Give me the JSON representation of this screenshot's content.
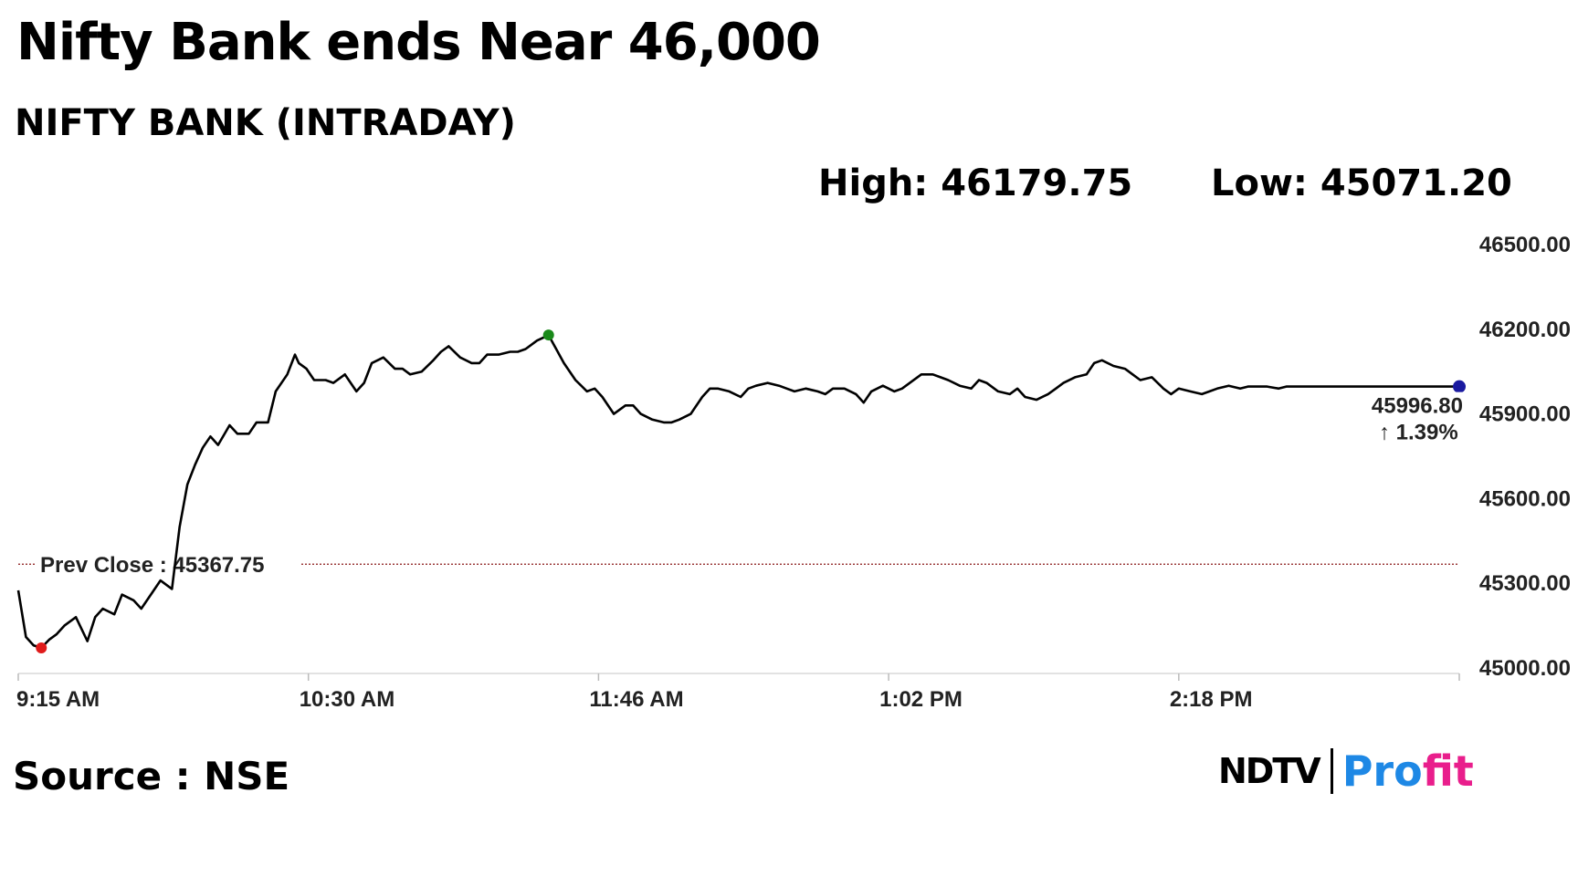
{
  "header": {
    "title": "Nifty Bank ends Near 46,000",
    "subtitle": "NIFTY BANK (INTRADAY)",
    "high": "High: 46179.75",
    "low": "Low: 45071.20"
  },
  "footer": {
    "source": "Source : NSE",
    "logo_left": "NDTV",
    "logo_right_a": "Pro",
    "logo_right_b": "fit"
  },
  "colors": {
    "line": "#000000",
    "prev_close": "#8b1a1a",
    "low_marker": "#e01b1b",
    "high_marker": "#1a8a1a",
    "last_marker": "#1a1aa0",
    "change": "#1a8a1a"
  },
  "chart_data": {
    "type": "line",
    "title": "NIFTY BANK (INTRADAY)",
    "xlabel": "",
    "ylabel": "",
    "x_ticks": [
      "9:15 AM",
      "10:30 AM",
      "11:46 AM",
      "1:02 PM",
      "2:18 PM"
    ],
    "y_ticks": [
      "46500.00",
      "46200.00",
      "45900.00",
      "45600.00",
      "45300.00",
      "45000.00"
    ],
    "ylim": [
      45000,
      46500
    ],
    "x_range_minutes": [
      0,
      375
    ],
    "grid": false,
    "prev_close": 45367.75,
    "prev_close_label": "Prev Close : 45367.75",
    "high": 46179.75,
    "low": 45071.2,
    "last_value": 45996.8,
    "last_value_label": "45996.80",
    "change_label": "↑ 1.39%",
    "series": [
      {
        "x_minutes": [
          0,
          2,
          4,
          6,
          8,
          10,
          12,
          15,
          18,
          20,
          22,
          25,
          27,
          30,
          32,
          35,
          37,
          40,
          42,
          44,
          46,
          48,
          50,
          52,
          55,
          57,
          60,
          62,
          65,
          67,
          70,
          72,
          73,
          75,
          77,
          80,
          82,
          85,
          88,
          90,
          92,
          95,
          98,
          100,
          102,
          105,
          108,
          110,
          112,
          115,
          118,
          120,
          122,
          125,
          128,
          130,
          132,
          135,
          138,
          140,
          142,
          145,
          148,
          150,
          152,
          155,
          158,
          160,
          162,
          165,
          168,
          170,
          172,
          175,
          178,
          180,
          182,
          185,
          188,
          190,
          192,
          195,
          198,
          200,
          202,
          205,
          208,
          210,
          212,
          215,
          218,
          220,
          222,
          225,
          228,
          230,
          232,
          235,
          238,
          240,
          242,
          245,
          248,
          250,
          252,
          255,
          258,
          260,
          262,
          265,
          268,
          270,
          272,
          275,
          278,
          280,
          282,
          285,
          288,
          290,
          292,
          295,
          298,
          300,
          302,
          305,
          308,
          310,
          312,
          315,
          318,
          320,
          322,
          325,
          328,
          330,
          332,
          335,
          338,
          340,
          342,
          345,
          348,
          350,
          352,
          355,
          358,
          360,
          362,
          365,
          368,
          370,
          372,
          375
        ],
        "values": [
          45275,
          45110,
          45080,
          45071,
          45100,
          45120,
          45150,
          45180,
          45095,
          45180,
          45210,
          45190,
          45260,
          45240,
          45210,
          45270,
          45310,
          45280,
          45500,
          45650,
          45720,
          45780,
          45820,
          45790,
          45860,
          45830,
          45830,
          45870,
          45870,
          45980,
          46040,
          46110,
          46080,
          46060,
          46020,
          46020,
          46010,
          46040,
          45980,
          46010,
          46080,
          46100,
          46060,
          46060,
          46040,
          46050,
          46090,
          46120,
          46140,
          46100,
          46080,
          46080,
          46110,
          46110,
          46120,
          46120,
          46130,
          46160,
          46179,
          46130,
          46080,
          46020,
          45980,
          45990,
          45960,
          45900,
          45930,
          45930,
          45900,
          45880,
          45870,
          45870,
          45880,
          45900,
          45960,
          45990,
          45990,
          45980,
          45960,
          45990,
          46000,
          46010,
          46000,
          45990,
          45980,
          45990,
          45980,
          45970,
          45990,
          45990,
          45970,
          45940,
          45980,
          46000,
          45980,
          45990,
          46010,
          46040,
          46040,
          46030,
          46020,
          46000,
          45990,
          46020,
          46010,
          45980,
          45970,
          45990,
          45960,
          45950,
          45970,
          45990,
          46010,
          46030,
          46040,
          46080,
          46090,
          46070,
          46060,
          46040,
          46020,
          46030,
          45990,
          45970,
          45990,
          45980,
          45970,
          45980,
          45990,
          46000,
          45990,
          45997,
          45997,
          45997,
          45990,
          45997,
          45997,
          45997,
          45997,
          45997,
          45997,
          45997,
          45997,
          45997,
          45997,
          45997,
          45997,
          45997,
          45997,
          45997,
          45997,
          45997,
          45997,
          45997
        ]
      }
    ]
  }
}
